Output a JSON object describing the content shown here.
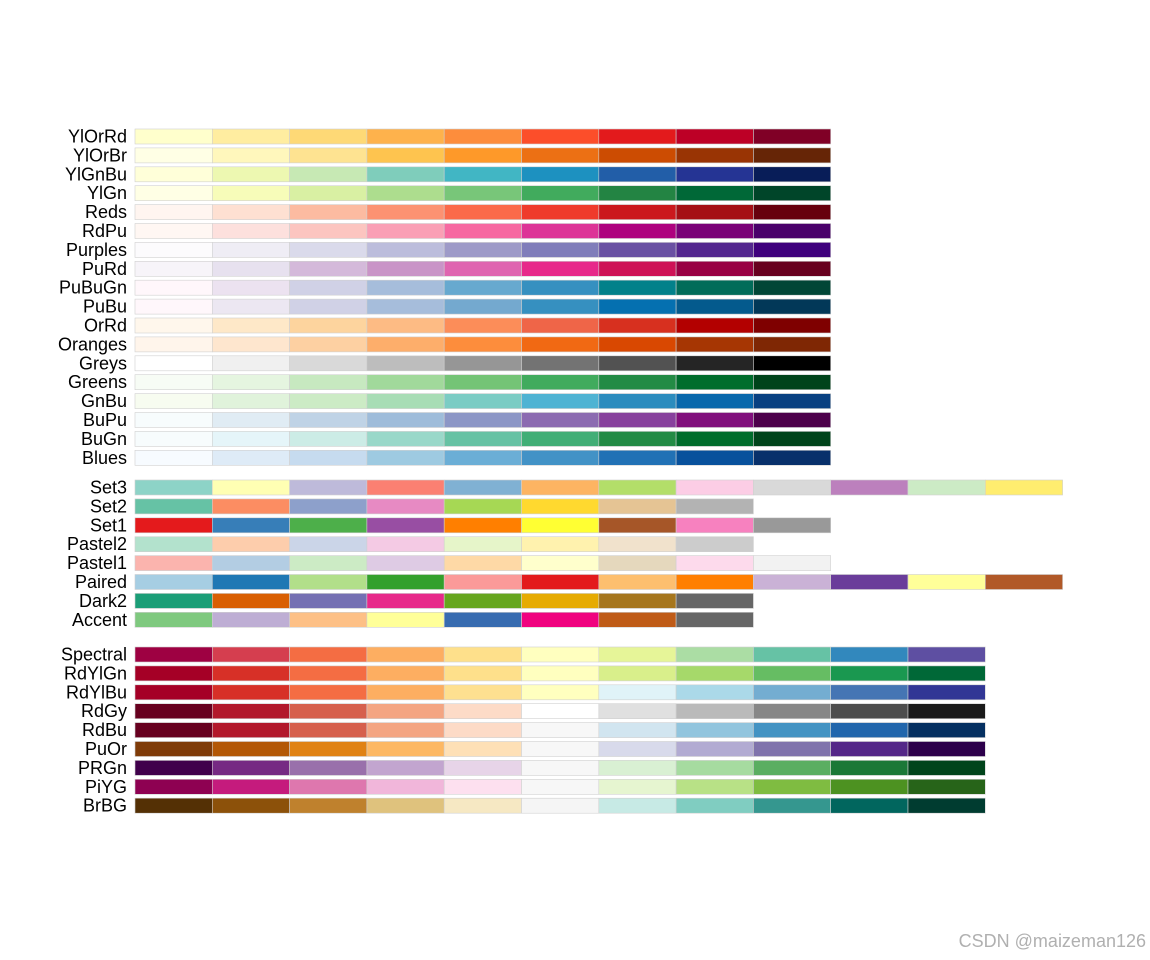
{
  "watermark": "CSDN @maizeman126",
  "chart_data": {
    "type": "heatmap",
    "groups": [
      {
        "kind": "sequential",
        "palettes": [
          {
            "name": "YlOrRd",
            "colors": [
              "#FFFFCC",
              "#FFEDA0",
              "#FED976",
              "#FEB24C",
              "#FD8D3C",
              "#FC4E2A",
              "#E31A1C",
              "#BD0026",
              "#800026"
            ]
          },
          {
            "name": "YlOrBr",
            "colors": [
              "#FFFFE5",
              "#FFF7BC",
              "#FEE391",
              "#FEC44F",
              "#FE9929",
              "#EC7014",
              "#CC4C02",
              "#993404",
              "#662506"
            ]
          },
          {
            "name": "YlGnBu",
            "colors": [
              "#FFFFD9",
              "#EDF8B1",
              "#C7E9B4",
              "#7FCDBB",
              "#41B6C4",
              "#1D91C0",
              "#225EA8",
              "#253494",
              "#081D58"
            ]
          },
          {
            "name": "YlGn",
            "colors": [
              "#FFFFE5",
              "#F7FCB9",
              "#D9F0A3",
              "#ADDD8E",
              "#78C679",
              "#41AB5D",
              "#238443",
              "#006837",
              "#004529"
            ]
          },
          {
            "name": "Reds",
            "colors": [
              "#FFF5F0",
              "#FEE0D2",
              "#FCBBA1",
              "#FC9272",
              "#FB6A4A",
              "#EF3B2C",
              "#CB181D",
              "#A50F15",
              "#67000D"
            ]
          },
          {
            "name": "RdPu",
            "colors": [
              "#FFF7F3",
              "#FDE0DD",
              "#FCC5C0",
              "#FA9FB5",
              "#F768A1",
              "#DD3497",
              "#AE017E",
              "#7A0177",
              "#49006A"
            ]
          },
          {
            "name": "Purples",
            "colors": [
              "#FCFBFD",
              "#EFEDF5",
              "#DADAEB",
              "#BCBDDC",
              "#9E9AC8",
              "#807DBA",
              "#6A51A3",
              "#54278F",
              "#3F007D"
            ]
          },
          {
            "name": "PuRd",
            "colors": [
              "#F7F4F9",
              "#E7E1EF",
              "#D4B9DA",
              "#C994C7",
              "#DF65B0",
              "#E7298A",
              "#CE1256",
              "#980043",
              "#67001F"
            ]
          },
          {
            "name": "PuBuGn",
            "colors": [
              "#FFF7FB",
              "#ECE2F0",
              "#D0D1E6",
              "#A6BDDB",
              "#67A9CF",
              "#3690C0",
              "#02818A",
              "#016C59",
              "#014636"
            ]
          },
          {
            "name": "PuBu",
            "colors": [
              "#FFF7FB",
              "#ECE7F2",
              "#D0D1E6",
              "#A6BDDB",
              "#74A9CF",
              "#3690C0",
              "#0570B0",
              "#045A8D",
              "#023858"
            ]
          },
          {
            "name": "OrRd",
            "colors": [
              "#FFF7EC",
              "#FEE8C8",
              "#FDD49E",
              "#FDBB84",
              "#FC8D59",
              "#EF6548",
              "#D7301F",
              "#B30000",
              "#7F0000"
            ]
          },
          {
            "name": "Oranges",
            "colors": [
              "#FFF5EB",
              "#FEE6CE",
              "#FDD0A2",
              "#FDAE6B",
              "#FD8D3C",
              "#F16913",
              "#D94801",
              "#A63603",
              "#7F2704"
            ]
          },
          {
            "name": "Greys",
            "colors": [
              "#FFFFFF",
              "#F0F0F0",
              "#D9D9D9",
              "#BDBDBD",
              "#969696",
              "#737373",
              "#525252",
              "#252525",
              "#000000"
            ]
          },
          {
            "name": "Greens",
            "colors": [
              "#F7FCF5",
              "#E5F5E0",
              "#C7E9C0",
              "#A1D99B",
              "#74C476",
              "#41AB5D",
              "#238B45",
              "#006D2C",
              "#00441B"
            ]
          },
          {
            "name": "GnBu",
            "colors": [
              "#F7FCF0",
              "#E0F3DB",
              "#CCEBC5",
              "#A8DDB5",
              "#7BCCC4",
              "#4EB3D3",
              "#2B8CBE",
              "#0868AC",
              "#084081"
            ]
          },
          {
            "name": "BuPu",
            "colors": [
              "#F7FCFD",
              "#E0ECF4",
              "#BFD3E6",
              "#9EBCDA",
              "#8C96C6",
              "#8C6BB1",
              "#88419D",
              "#810F7C",
              "#4D004B"
            ]
          },
          {
            "name": "BuGn",
            "colors": [
              "#F7FCFD",
              "#E5F5F9",
              "#CCECE6",
              "#99D8C9",
              "#66C2A4",
              "#41AE76",
              "#238B45",
              "#006D2C",
              "#00441B"
            ]
          },
          {
            "name": "Blues",
            "colors": [
              "#F7FBFF",
              "#DEEBF7",
              "#C6DBEF",
              "#9ECAE1",
              "#6BAED6",
              "#4292C6",
              "#2171B5",
              "#08519C",
              "#08306B"
            ]
          }
        ]
      },
      {
        "kind": "qualitative",
        "palettes": [
          {
            "name": "Set3",
            "colors": [
              "#8DD3C7",
              "#FFFFB3",
              "#BEBADA",
              "#FB8072",
              "#80B1D3",
              "#FDB462",
              "#B3DE69",
              "#FCCDE5",
              "#D9D9D9",
              "#BC80BD",
              "#CCEBC5",
              "#FFED6F"
            ]
          },
          {
            "name": "Set2",
            "colors": [
              "#66C2A5",
              "#FC8D62",
              "#8DA0CB",
              "#E78AC3",
              "#A6D854",
              "#FFD92F",
              "#E5C494",
              "#B3B3B3"
            ]
          },
          {
            "name": "Set1",
            "colors": [
              "#E41A1C",
              "#377EB8",
              "#4DAF4A",
              "#984EA3",
              "#FF7F00",
              "#FFFF33",
              "#A65628",
              "#F781BF",
              "#999999"
            ]
          },
          {
            "name": "Pastel2",
            "colors": [
              "#B3E2CD",
              "#FDCDAC",
              "#CBD5E8",
              "#F4CAE4",
              "#E6F5C9",
              "#FFF2AE",
              "#F1E2CC",
              "#CCCCCC"
            ]
          },
          {
            "name": "Pastel1",
            "colors": [
              "#FBB4AE",
              "#B3CDE3",
              "#CCEBC5",
              "#DECBE4",
              "#FED9A6",
              "#FFFFCC",
              "#E5D8BD",
              "#FDDAEC",
              "#F2F2F2"
            ]
          },
          {
            "name": "Paired",
            "colors": [
              "#A6CEE3",
              "#1F78B4",
              "#B2DF8A",
              "#33A02C",
              "#FB9A99",
              "#E31A1C",
              "#FDBF6F",
              "#FF7F00",
              "#CAB2D6",
              "#6A3D9A",
              "#FFFF99",
              "#B15928"
            ]
          },
          {
            "name": "Dark2",
            "colors": [
              "#1B9E77",
              "#D95F02",
              "#7570B3",
              "#E7298A",
              "#66A61E",
              "#E6AB02",
              "#A6761D",
              "#666666"
            ]
          },
          {
            "name": "Accent",
            "colors": [
              "#7FC97F",
              "#BEAED4",
              "#FDC086",
              "#FFFF99",
              "#386CB0",
              "#F0027F",
              "#BF5B17",
              "#666666"
            ]
          }
        ]
      },
      {
        "kind": "diverging",
        "palettes": [
          {
            "name": "Spectral",
            "colors": [
              "#9E0142",
              "#D53E4F",
              "#F46D43",
              "#FDAE61",
              "#FEE08B",
              "#FFFFBF",
              "#E6F598",
              "#ABDDA4",
              "#66C2A5",
              "#3288BD",
              "#5E4FA2"
            ]
          },
          {
            "name": "RdYlGn",
            "colors": [
              "#A50026",
              "#D73027",
              "#F46D43",
              "#FDAE61",
              "#FEE08B",
              "#FFFFBF",
              "#D9EF8B",
              "#A6D96A",
              "#66BD63",
              "#1A9850",
              "#006837"
            ]
          },
          {
            "name": "RdYlBu",
            "colors": [
              "#A50026",
              "#D73027",
              "#F46D43",
              "#FDAE61",
              "#FEE090",
              "#FFFFBF",
              "#E0F3F8",
              "#ABD9E9",
              "#74ADD1",
              "#4575B4",
              "#313695"
            ]
          },
          {
            "name": "RdGy",
            "colors": [
              "#67001F",
              "#B2182B",
              "#D6604D",
              "#F4A582",
              "#FDDBC7",
              "#FFFFFF",
              "#E0E0E0",
              "#BABABA",
              "#878787",
              "#4D4D4D",
              "#1A1A1A"
            ]
          },
          {
            "name": "RdBu",
            "colors": [
              "#67001F",
              "#B2182B",
              "#D6604D",
              "#F4A582",
              "#FDDBC7",
              "#F7F7F7",
              "#D1E5F0",
              "#92C5DE",
              "#4393C3",
              "#2166AC",
              "#053061"
            ]
          },
          {
            "name": "PuOr",
            "colors": [
              "#7F3B08",
              "#B35806",
              "#E08214",
              "#FDB863",
              "#FEE0B6",
              "#F7F7F7",
              "#D8DAEB",
              "#B2ABD2",
              "#8073AC",
              "#542788",
              "#2D004B"
            ]
          },
          {
            "name": "PRGn",
            "colors": [
              "#40004B",
              "#762A83",
              "#9970AB",
              "#C2A5CF",
              "#E7D4E8",
              "#F7F7F7",
              "#D9F0D3",
              "#A6DBA0",
              "#5AAE61",
              "#1B7837",
              "#00441B"
            ]
          },
          {
            "name": "PiYG",
            "colors": [
              "#8E0152",
              "#C51B7D",
              "#DE77AE",
              "#F1B6DA",
              "#FDE0EF",
              "#F7F7F7",
              "#E6F5D0",
              "#B8E186",
              "#7FBC41",
              "#4D9221",
              "#276419"
            ]
          },
          {
            "name": "BrBG",
            "colors": [
              "#543005",
              "#8C510A",
              "#BF812D",
              "#DFC27D",
              "#F6E8C3",
              "#F5F5F5",
              "#C7EAE5",
              "#80CDC1",
              "#35978F",
              "#01665E",
              "#003C30"
            ]
          }
        ]
      }
    ]
  }
}
